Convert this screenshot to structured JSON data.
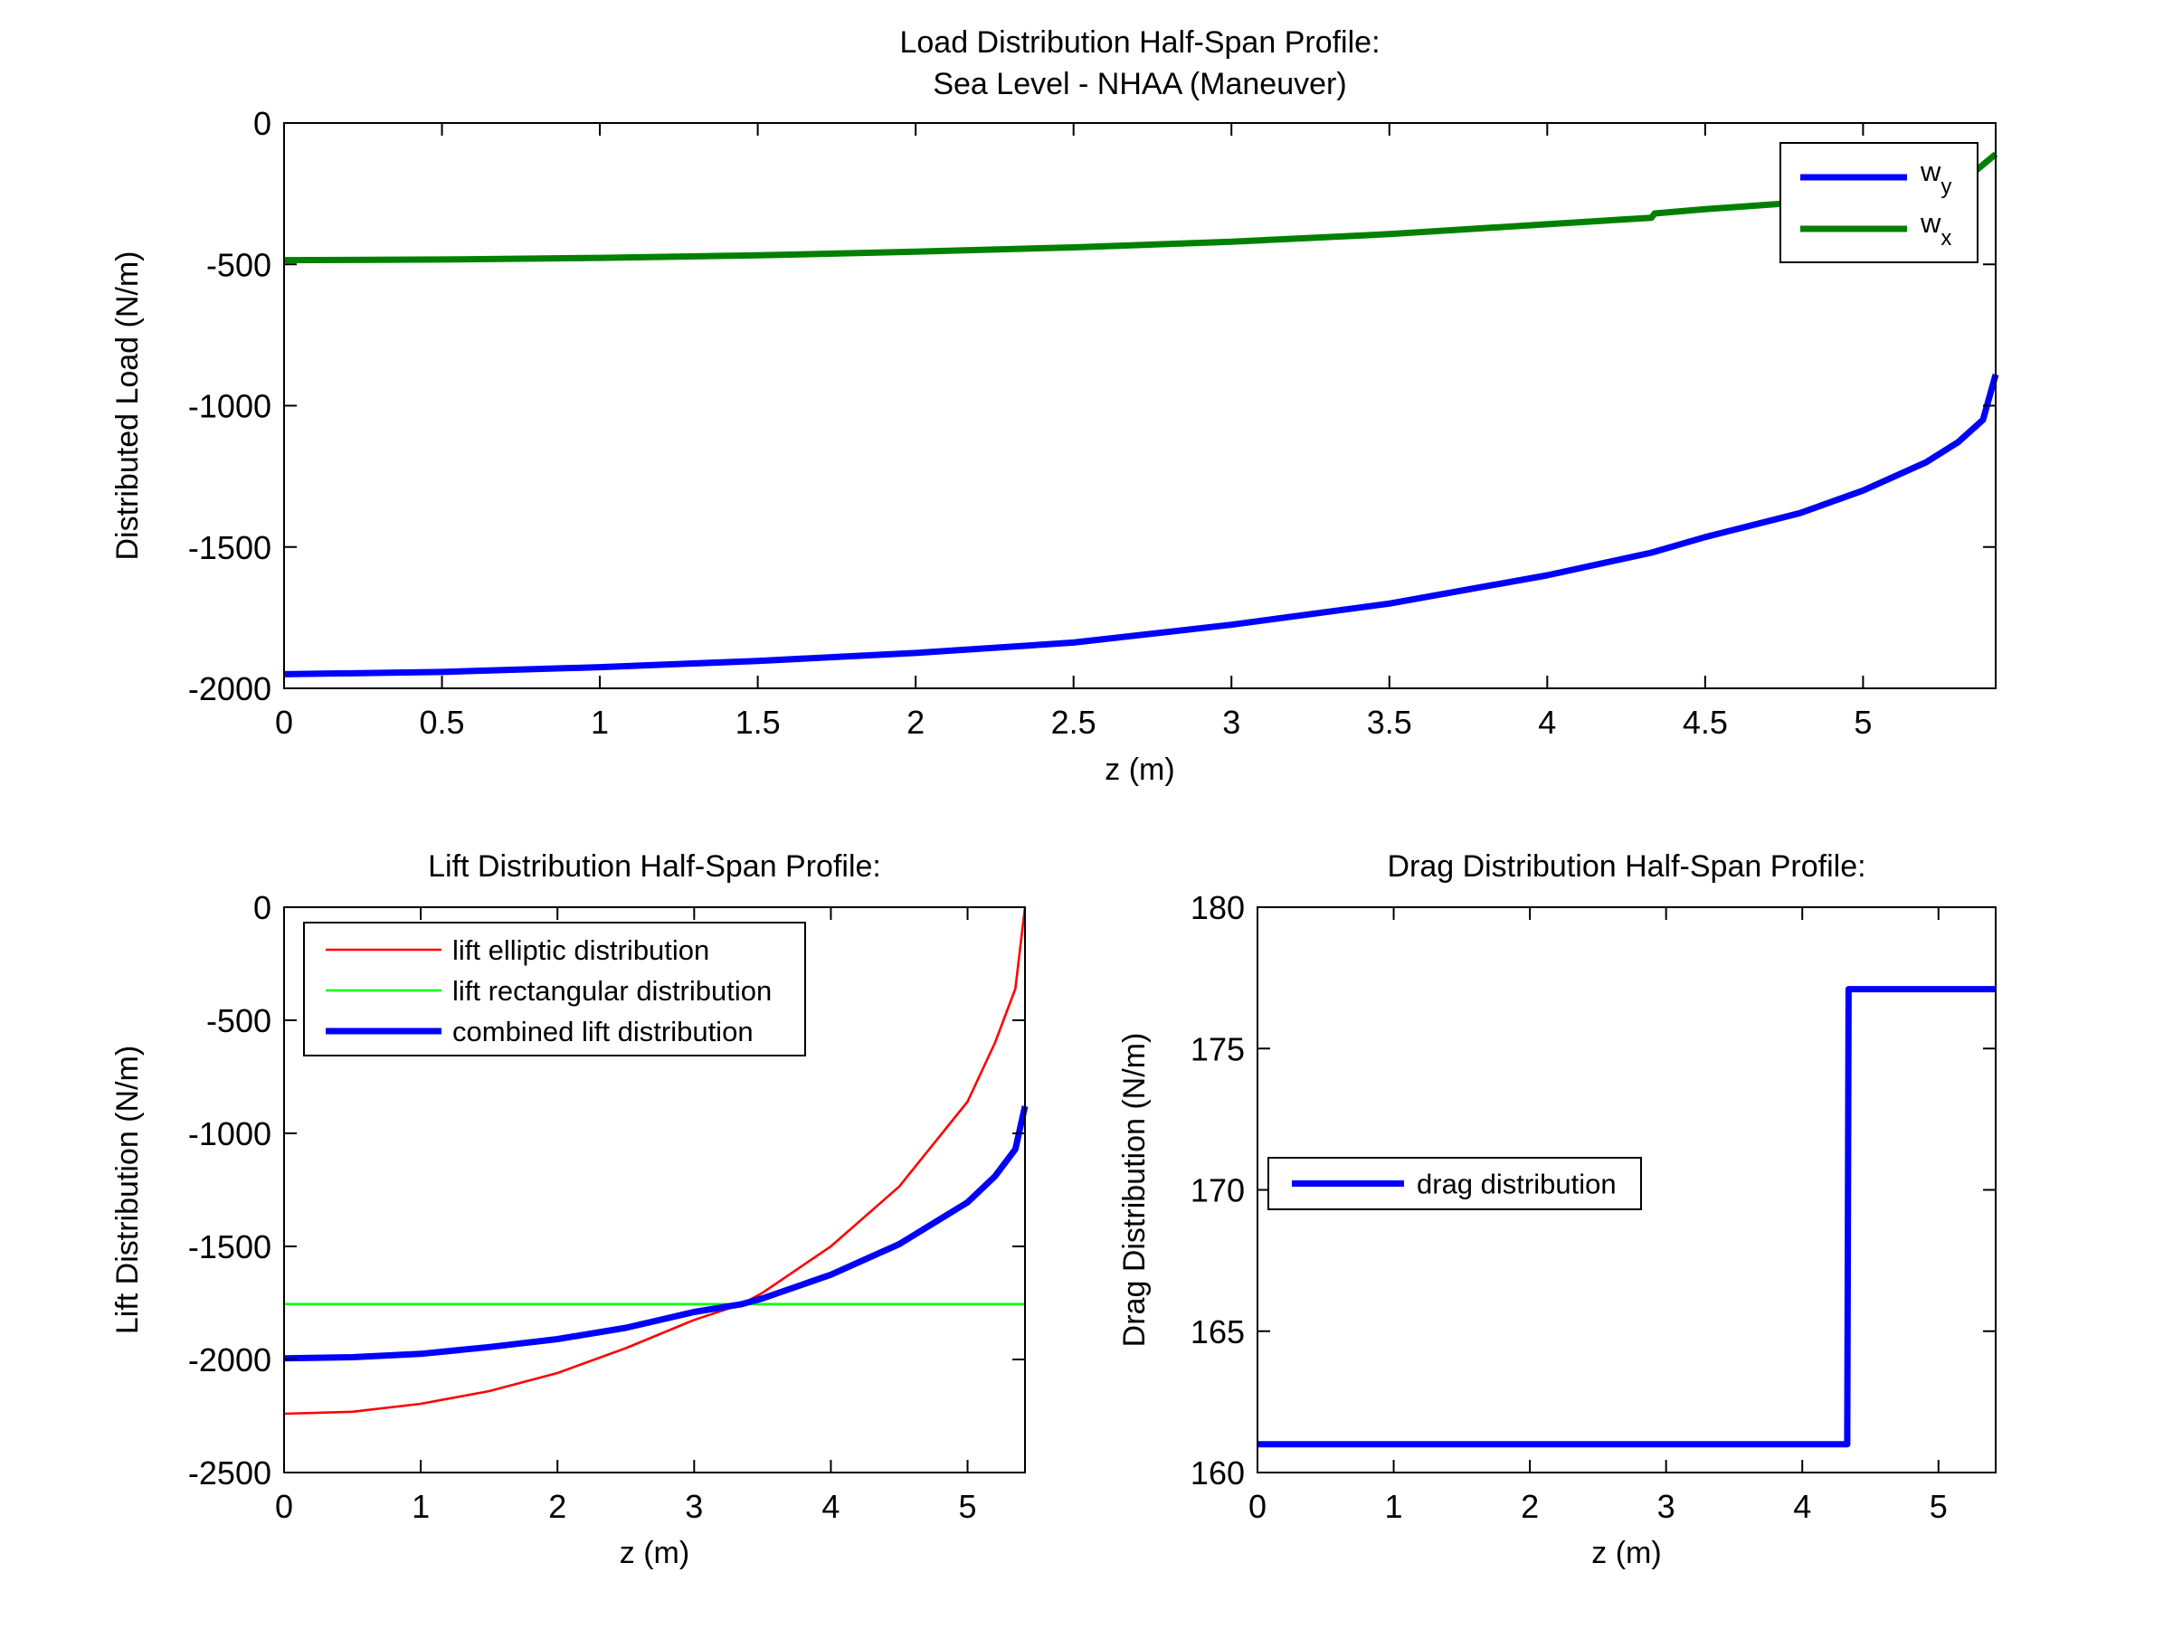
{
  "chart_data": [
    {
      "type": "line",
      "title_lines": [
        "Load Distribution Half-Span Profile:",
        "Sea Level - NHAA (Maneuver)"
      ],
      "xlabel": "z (m)",
      "ylabel": "Distributed Load (N/m)",
      "xlim": [
        0,
        5.42
      ],
      "ylim": [
        -2000,
        0
      ],
      "xticks": [
        0,
        0.5,
        1,
        1.5,
        2,
        2.5,
        3,
        3.5,
        4,
        4.5,
        5
      ],
      "xtick_labels": [
        "0",
        "0.5",
        "1",
        "1.5",
        "2",
        "2.5",
        "3",
        "3.5",
        "4",
        "4.5",
        "5"
      ],
      "yticks": [
        0,
        -500,
        -1000,
        -1500,
        -2000
      ],
      "ytick_labels": [
        "0",
        "-500",
        "-1000",
        "-1500",
        "-2000"
      ],
      "legend_position": "top-right",
      "series": [
        {
          "name": "w",
          "name_sub": "y",
          "color": "#0000ff",
          "x": [
            0,
            0.5,
            1,
            1.5,
            2,
            2.5,
            3,
            3.5,
            4,
            4.33,
            4.5,
            4.8,
            5,
            5.2,
            5.3,
            5.38,
            5.42
          ],
          "y": [
            -1950,
            -1942,
            -1925,
            -1903,
            -1875,
            -1838,
            -1775,
            -1700,
            -1600,
            -1520,
            -1465,
            -1380,
            -1300,
            -1200,
            -1130,
            -1050,
            -890
          ]
        },
        {
          "name": "w",
          "name_sub": "x",
          "color": "#008000",
          "x": [
            0,
            0.5,
            1,
            1.5,
            2,
            2.5,
            3,
            3.5,
            4,
            4.33,
            4.34,
            4.5,
            5,
            5.2,
            5.35,
            5.42
          ],
          "y": [
            -485,
            -483,
            -477,
            -468,
            -455,
            -440,
            -420,
            -393,
            -358,
            -335,
            -320,
            -305,
            -265,
            -240,
            -175,
            -110
          ]
        }
      ]
    },
    {
      "type": "line",
      "title_lines": [
        "Lift Distribution Half-Span Profile:"
      ],
      "xlabel": "z (m)",
      "ylabel": "Lift Distribution (N/m)",
      "xlim": [
        0,
        5.42
      ],
      "ylim": [
        -2500,
        0
      ],
      "xticks": [
        0,
        1,
        2,
        3,
        4,
        5
      ],
      "xtick_labels": [
        "0",
        "1",
        "2",
        "3",
        "4",
        "5"
      ],
      "yticks": [
        0,
        -500,
        -1000,
        -1500,
        -2000,
        -2500
      ],
      "ytick_labels": [
        "0",
        "-500",
        "-1000",
        "-1500",
        "-2000",
        "-2500"
      ],
      "legend_position": "top-left",
      "series": [
        {
          "name": "lift elliptic distribution",
          "color": "#ff0000",
          "x": [
            0,
            0.5,
            1,
            1.5,
            2,
            2.5,
            3,
            3.35,
            3.5,
            4,
            4.5,
            5,
            5.2,
            5.35,
            5.42
          ],
          "y": [
            -2240,
            -2231,
            -2196,
            -2140,
            -2060,
            -1950,
            -1825,
            -1755,
            -1705,
            -1500,
            -1235,
            -860,
            -600,
            -360,
            0
          ]
        },
        {
          "name": "lift rectangular distribution",
          "color": "#00ff00",
          "x": [
            0,
            5.42
          ],
          "y": [
            -1755,
            -1755
          ]
        },
        {
          "name": "combined lift distribution",
          "color": "#0000ff",
          "x": [
            0,
            0.5,
            1,
            1.5,
            2,
            2.5,
            3,
            3.35,
            3.5,
            4,
            4.5,
            5,
            5.2,
            5.35,
            5.42
          ],
          "y": [
            -1995,
            -1990,
            -1975,
            -1945,
            -1910,
            -1860,
            -1790,
            -1755,
            -1730,
            -1625,
            -1490,
            -1305,
            -1190,
            -1070,
            -880
          ]
        }
      ]
    },
    {
      "type": "line",
      "title_lines": [
        "Drag Distribution Half-Span Profile:"
      ],
      "xlabel": "z (m)",
      "ylabel": "Drag Distribution (N/m)",
      "xlim": [
        0,
        5.42
      ],
      "ylim": [
        160,
        180
      ],
      "xticks": [
        0,
        1,
        2,
        3,
        4,
        5
      ],
      "xtick_labels": [
        "0",
        "1",
        "2",
        "3",
        "4",
        "5"
      ],
      "yticks": [
        160,
        165,
        170,
        175,
        180
      ],
      "ytick_labels": [
        "160",
        "165",
        "170",
        "175",
        "180"
      ],
      "legend_position": "middle-left",
      "series": [
        {
          "name": "drag distribution",
          "color": "#0000ff",
          "x": [
            0,
            4.33,
            4.34,
            5.42
          ],
          "y": [
            161,
            161,
            177.1,
            177.1
          ]
        }
      ]
    }
  ]
}
